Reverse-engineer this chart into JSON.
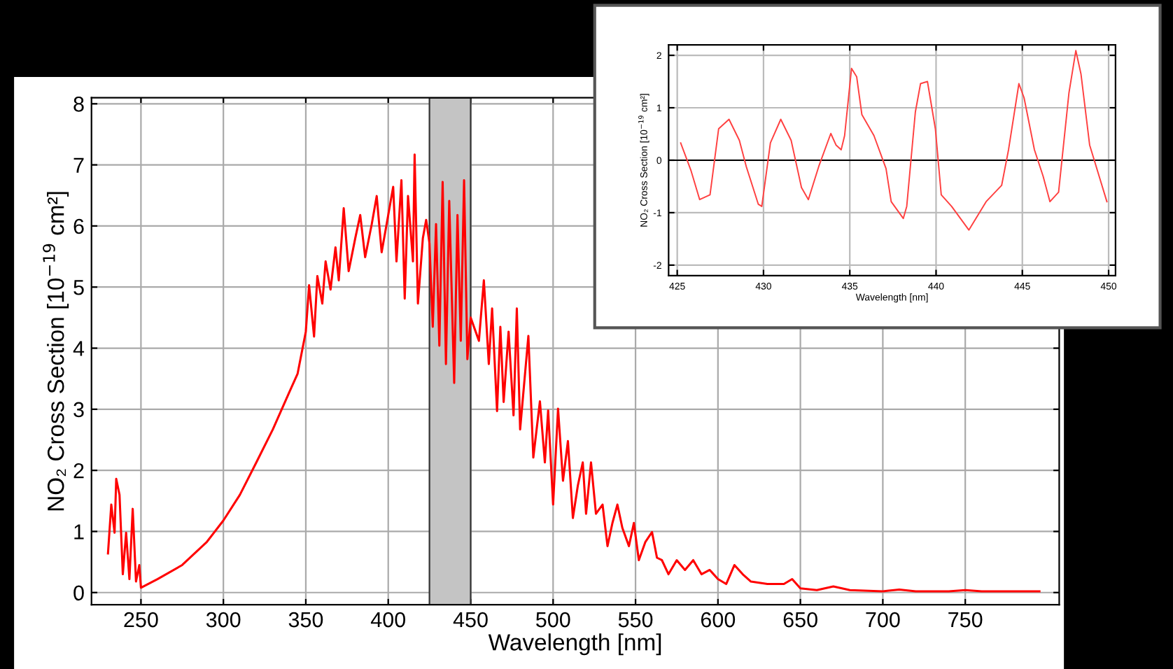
{
  "chart_data": [
    {
      "type": "line",
      "xlabel": "Wavelength [nm]",
      "ylabel": "NO₂ Cross Section [10$^{−19}$ cm²]",
      "xlim": [
        220,
        807
      ],
      "ylim": [
        -0.2,
        8.1
      ],
      "xticks": [
        250,
        300,
        350,
        400,
        450,
        500,
        550,
        600,
        650,
        700,
        750
      ],
      "yticks": [
        0,
        1,
        2,
        3,
        4,
        5,
        6,
        7,
        8
      ],
      "grid": true,
      "legend": false,
      "marker": "none",
      "line_style": "solid",
      "bands": [
        {
          "axis": "x",
          "from": 425,
          "to": 450,
          "color": "#c4c4c4"
        }
      ],
      "series": [
        {
          "color": "#ff0000",
          "x": [
            230,
            232,
            234,
            235,
            237,
            239,
            241,
            243,
            245,
            247,
            249,
            250,
            260,
            275,
            290,
            300,
            310,
            320,
            330,
            340,
            345,
            350,
            352,
            355,
            357,
            360,
            362,
            365,
            368,
            370,
            373,
            376,
            380,
            383,
            386,
            390,
            393,
            396,
            400,
            403,
            405,
            408,
            410,
            412,
            415,
            416,
            418,
            421,
            423,
            425,
            427,
            429,
            431,
            433,
            435,
            437,
            440,
            442,
            444,
            446,
            448,
            450,
            455,
            458,
            461,
            463,
            466,
            468,
            470,
            473,
            476,
            478,
            480,
            485,
            488,
            492,
            495,
            497,
            500,
            503,
            506,
            509,
            512,
            515,
            518,
            520,
            523,
            526,
            530,
            533,
            536,
            539,
            542,
            546,
            549,
            552,
            556,
            560,
            563,
            566,
            570,
            575,
            580,
            585,
            590,
            595,
            600,
            605,
            610,
            615,
            620,
            630,
            640,
            645,
            650,
            660,
            670,
            680,
            700,
            710,
            720,
            740,
            750,
            760,
            795
          ],
          "values": [
            0.64,
            1.44,
            0.98,
            1.86,
            1.6,
            0.3,
            0.98,
            0.22,
            1.37,
            0.18,
            0.45,
            0.08,
            0.22,
            0.45,
            0.83,
            1.18,
            1.6,
            2.13,
            2.67,
            3.28,
            3.58,
            4.27,
            5.03,
            4.19,
            5.18,
            4.73,
            5.42,
            4.96,
            5.65,
            5.11,
            6.29,
            5.26,
            5.8,
            6.18,
            5.49,
            6.03,
            6.49,
            5.57,
            6.18,
            6.64,
            5.42,
            6.75,
            4.81,
            6.49,
            5.42,
            7.17,
            4.73,
            5.8,
            6.1,
            5.72,
            4.35,
            6.03,
            4.04,
            6.72,
            3.74,
            6.41,
            3.43,
            6.18,
            4.12,
            6.75,
            3.82,
            4.5,
            4.12,
            5.11,
            3.74,
            4.65,
            2.97,
            4.35,
            3.12,
            4.27,
            2.9,
            4.65,
            2.67,
            4.2,
            2.21,
            3.13,
            2.13,
            2.98,
            1.44,
            3.01,
            1.83,
            2.48,
            1.22,
            1.75,
            2.13,
            1.29,
            2.13,
            1.29,
            1.44,
            0.76,
            1.14,
            1.44,
            1.06,
            0.76,
            1.14,
            0.53,
            0.83,
            0.99,
            0.57,
            0.53,
            0.3,
            0.53,
            0.37,
            0.53,
            0.3,
            0.37,
            0.22,
            0.14,
            0.45,
            0.3,
            0.18,
            0.14,
            0.14,
            0.22,
            0.07,
            0.04,
            0.1,
            0.04,
            0.02,
            0.05,
            0.02,
            0.02,
            0.04,
            0.02,
            0.02
          ]
        }
      ]
    },
    {
      "type": "line",
      "xlabel": "Wavelength [nm]",
      "ylabel": "NO₂ Cross Section [10$^{−19}$ cm²]",
      "xlim": [
        424.5,
        450.4
      ],
      "ylim": [
        -2.2,
        2.2
      ],
      "xticks": [
        425,
        430,
        435,
        440,
        445,
        450
      ],
      "yticks": [
        -2,
        -1,
        0,
        1,
        2
      ],
      "grid": true,
      "legend": false,
      "marker": "none",
      "line_style": "solid",
      "ref_lines": [
        {
          "axis": "y",
          "value": 0,
          "color": "#000000"
        }
      ],
      "series": [
        {
          "color": "#ff4040",
          "x": [
            425.2,
            425.8,
            426.3,
            426.9,
            427.4,
            428.0,
            428.6,
            429.0,
            429.7,
            429.9,
            430.4,
            431.0,
            431.6,
            432.2,
            432.6,
            433.2,
            433.9,
            434.2,
            434.5,
            434.7,
            435.1,
            435.4,
            435.7,
            436.4,
            437.1,
            437.4,
            438.1,
            438.3,
            438.8,
            439.1,
            439.5,
            439.96,
            440.3,
            440.9,
            441.3,
            441.9,
            442.4,
            442.9,
            443.8,
            444.2,
            444.8,
            445.1,
            445.7,
            446.2,
            446.6,
            447.1,
            447.7,
            448.1,
            448.4,
            448.9,
            449.9
          ],
          "values": [
            0.33,
            -0.2,
            -0.75,
            -0.66,
            0.6,
            0.78,
            0.38,
            -0.12,
            -0.84,
            -0.88,
            0.33,
            0.78,
            0.38,
            -0.52,
            -0.75,
            -0.12,
            0.51,
            0.29,
            0.2,
            0.47,
            1.75,
            1.59,
            0.87,
            0.47,
            -0.16,
            -0.79,
            -1.11,
            -0.88,
            0.92,
            1.46,
            1.5,
            0.6,
            -0.66,
            -0.88,
            -1.06,
            -1.33,
            -1.06,
            -0.79,
            -0.48,
            0.2,
            1.46,
            1.19,
            0.2,
            -0.3,
            -0.79,
            -0.61,
            1.28,
            2.09,
            1.64,
            0.29,
            -0.79
          ]
        }
      ]
    }
  ]
}
